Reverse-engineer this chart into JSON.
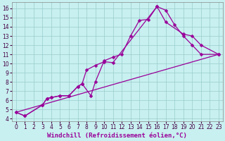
{
  "bg_color": "#c8f0f0",
  "grid_color": "#99cccc",
  "line_color": "#990099",
  "marker": "D",
  "markersize": 2.5,
  "linewidth": 0.9,
  "xlabel": "Windchill (Refroidissement éolien,°C)",
  "xlim": [
    -0.5,
    23.5
  ],
  "ylim": [
    3.7,
    16.7
  ],
  "xticks": [
    0,
    1,
    2,
    3,
    4,
    5,
    6,
    7,
    8,
    9,
    10,
    11,
    12,
    13,
    14,
    15,
    16,
    17,
    18,
    19,
    20,
    21,
    22,
    23
  ],
  "yticks": [
    4,
    5,
    6,
    7,
    8,
    9,
    10,
    11,
    12,
    13,
    14,
    15,
    16
  ],
  "line1_x": [
    0,
    1,
    3,
    3.5,
    4,
    5,
    6,
    7,
    7.5,
    8.5,
    9,
    10,
    11,
    12,
    13,
    14,
    15,
    16,
    17,
    18,
    19,
    20,
    21,
    23
  ],
  "line1_y": [
    4.7,
    4.3,
    5.5,
    6.2,
    6.3,
    6.5,
    6.5,
    7.5,
    7.8,
    6.5,
    8.0,
    10.3,
    10.7,
    11.0,
    13.0,
    14.7,
    14.8,
    16.2,
    15.8,
    14.2,
    13.0,
    12.0,
    11.0,
    11.0
  ],
  "line2_x": [
    0,
    1,
    3,
    3.5,
    4,
    5,
    6,
    7,
    7.5,
    8,
    9,
    10,
    11,
    16,
    17,
    19,
    20,
    21,
    23
  ],
  "line2_y": [
    4.7,
    4.3,
    5.5,
    6.2,
    6.3,
    6.5,
    6.5,
    7.5,
    7.8,
    9.3,
    9.8,
    10.2,
    10.1,
    16.2,
    14.5,
    13.2,
    13.0,
    12.0,
    11.0
  ],
  "line3_x": [
    0,
    23
  ],
  "line3_y": [
    4.7,
    11.0
  ],
  "tick_fontsize": 5.5,
  "label_fontsize": 6.5
}
